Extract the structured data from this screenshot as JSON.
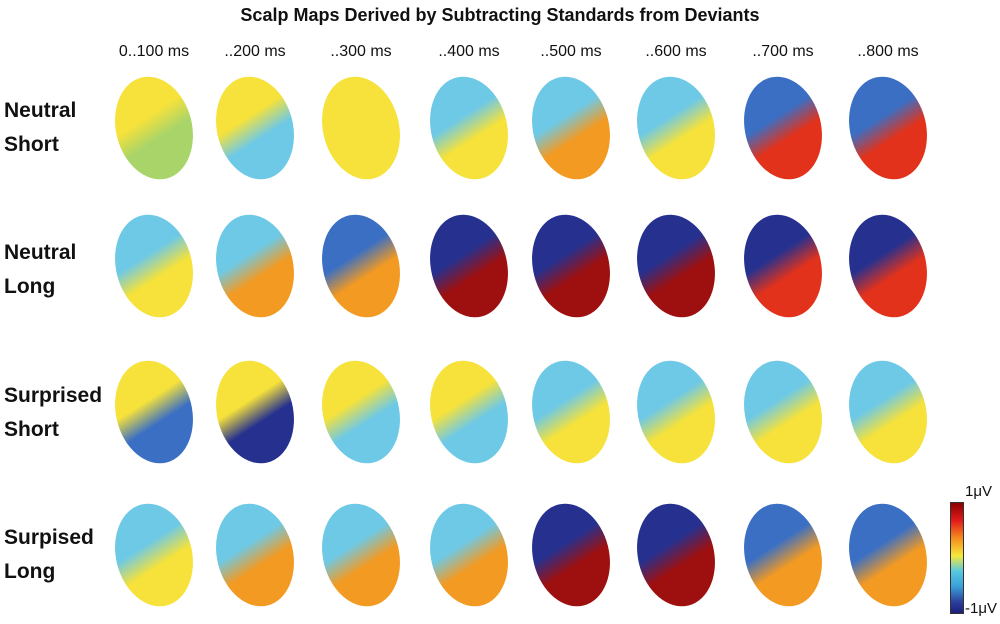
{
  "title": "Scalp Maps Derived by Subtracting Standards from Deviants",
  "time_labels": [
    "0..100 ms",
    "..200 ms",
    "..300 ms",
    "..400 ms",
    "..500 ms",
    "..600 ms",
    "..700 ms",
    "..800 ms"
  ],
  "conditions": [
    {
      "line1": "Neutral",
      "line2": "Short",
      "maps": [
        {
          "front": "yellow",
          "back": "green"
        },
        {
          "front": "yellow",
          "back": "cyan"
        },
        {
          "front": "yellow",
          "back": "yellow"
        },
        {
          "front": "cyan",
          "back": "yellow"
        },
        {
          "front": "cyan",
          "back": "orange"
        },
        {
          "front": "cyan",
          "back": "yellow"
        },
        {
          "front": "blue",
          "back": "red"
        },
        {
          "front": "blue",
          "back": "red"
        }
      ]
    },
    {
      "line1": "Neutral",
      "line2": "Long",
      "maps": [
        {
          "front": "cyan",
          "back": "yellow"
        },
        {
          "front": "cyan",
          "back": "orange"
        },
        {
          "front": "blue",
          "back": "orange"
        },
        {
          "front": "darkblue",
          "back": "darkred"
        },
        {
          "front": "darkblue",
          "back": "darkred"
        },
        {
          "front": "darkblue",
          "back": "darkred"
        },
        {
          "front": "darkblue",
          "back": "red"
        },
        {
          "front": "darkblue",
          "back": "red"
        }
      ]
    },
    {
      "line1": "Surprised",
      "line2": "Short",
      "maps": [
        {
          "front": "yellow",
          "back": "blue"
        },
        {
          "front": "yellow",
          "back": "darkblue"
        },
        {
          "front": "yellow",
          "back": "cyan"
        },
        {
          "front": "yellow",
          "back": "cyan"
        },
        {
          "front": "cyan",
          "back": "yellow"
        },
        {
          "front": "cyan",
          "back": "yellow"
        },
        {
          "front": "cyan",
          "back": "yellow"
        },
        {
          "front": "cyan",
          "back": "yellow"
        }
      ]
    },
    {
      "line1": "Surpised",
      "line2": "Long",
      "maps": [
        {
          "front": "cyan",
          "back": "yellow"
        },
        {
          "front": "cyan",
          "back": "orange"
        },
        {
          "front": "cyan",
          "back": "orange"
        },
        {
          "front": "cyan",
          "back": "orange"
        },
        {
          "front": "darkblue",
          "back": "darkred"
        },
        {
          "front": "darkblue",
          "back": "darkred"
        },
        {
          "front": "blue",
          "back": "orange"
        },
        {
          "front": "blue",
          "back": "orange"
        }
      ]
    }
  ],
  "colors": {
    "darkblue": "#26318f",
    "blue": "#3a6fc4",
    "cyan": "#6ec9e6",
    "green": "#a8d46a",
    "yellow": "#f6e23a",
    "orange": "#f39a22",
    "red": "#e2321b",
    "darkred": "#9e1010"
  },
  "colorbar": {
    "max_label": "1μV",
    "min_label": "-1μV",
    "max": 1,
    "min": -1
  }
}
